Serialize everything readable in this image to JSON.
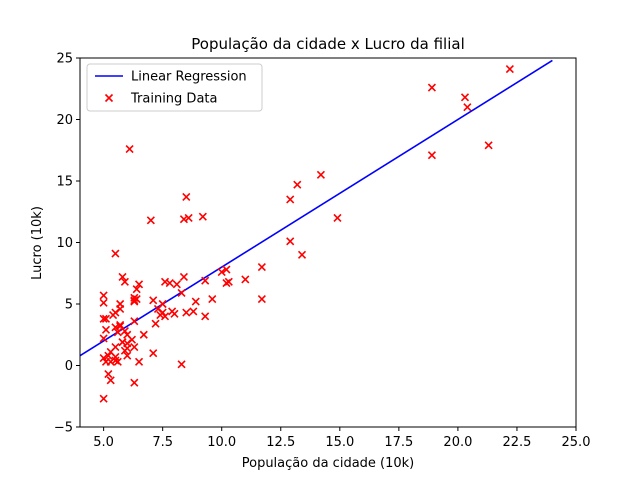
{
  "chart_data": {
    "type": "scatter",
    "title": "População da cidade x Lucro da filial",
    "xlabel": "População da cidade (10k)",
    "ylabel": "Lucro (10k)",
    "xlim": [
      4.0,
      25.0
    ],
    "ylim": [
      -5,
      25
    ],
    "xticks": [
      "5.0",
      "7.5",
      "10.0",
      "12.5",
      "15.0",
      "17.5",
      "20.0",
      "22.5",
      "25.0"
    ],
    "yticks": [
      "−5",
      "0",
      "5",
      "10",
      "15",
      "20",
      "25"
    ],
    "xtick_values": [
      5.0,
      7.5,
      10.0,
      12.5,
      15.0,
      17.5,
      20.0,
      22.5,
      25.0
    ],
    "ytick_values": [
      -5,
      0,
      5,
      10,
      15,
      20,
      25
    ],
    "grid": false,
    "legend_position": "top-left",
    "series": [
      {
        "name": "Linear Regression",
        "kind": "line",
        "color": "#0000ff",
        "x": [
          4.0,
          24.0
        ],
        "y": [
          0.8,
          24.8
        ]
      },
      {
        "name": "Training Data",
        "kind": "scatter",
        "marker": "x",
        "color": "#ff0000",
        "points": [
          [
            6.1,
            17.6
          ],
          [
            5.5,
            9.1
          ],
          [
            8.5,
            13.7
          ],
          [
            7.0,
            11.8
          ],
          [
            5.9,
            6.8
          ],
          [
            8.4,
            11.9
          ],
          [
            7.5,
            4.3
          ],
          [
            8.6,
            12.0
          ],
          [
            6.5,
            6.6
          ],
          [
            5.1,
            3.8
          ],
          [
            5.7,
            3.3
          ],
          [
            14.2,
            15.5
          ],
          [
            5.7,
            3.2
          ],
          [
            6.0,
            1.4
          ],
          [
            5.8,
            1.9
          ],
          [
            8.3,
            0.1
          ],
          [
            5.5,
            0.4
          ],
          [
            6.3,
            5.3
          ],
          [
            5.5,
            1.5
          ],
          [
            5.9,
            2.8
          ],
          [
            5.4,
            4.1
          ],
          [
            5.9,
            1.2
          ],
          [
            6.5,
            0.3
          ],
          [
            5.3,
            1.1
          ],
          [
            5.7,
            5.0
          ],
          [
            6.7,
            2.5
          ],
          [
            5.1,
            2.9
          ],
          [
            7.1,
            5.3
          ],
          [
            8.3,
            5.9
          ],
          [
            13.2,
            14.7
          ],
          [
            12.9,
            13.5
          ],
          [
            7.9,
            4.4
          ],
          [
            9.3,
            6.9
          ],
          [
            5.2,
            0.8
          ],
          [
            5.3,
            0.3
          ],
          [
            5.0,
            3.8
          ],
          [
            5.0,
            2.2
          ],
          [
            7.6,
            6.8
          ],
          [
            6.3,
            5.5
          ],
          [
            5.6,
            2.7
          ],
          [
            18.9,
            22.6
          ],
          [
            20.3,
            21.8
          ],
          [
            18.9,
            17.1
          ],
          [
            20.4,
            21.0
          ],
          [
            22.2,
            24.1
          ],
          [
            21.3,
            17.9
          ],
          [
            10.3,
            6.8
          ],
          [
            11.7,
            8.0
          ],
          [
            7.2,
            3.4
          ],
          [
            6.2,
            2.1
          ],
          [
            7.4,
            4.1
          ],
          [
            10.2,
            6.7
          ],
          [
            11.0,
            7.0
          ],
          [
            11.7,
            5.4
          ],
          [
            9.3,
            4.0
          ],
          [
            10.0,
            7.6
          ],
          [
            9.6,
            5.4
          ],
          [
            7.3,
            4.6
          ],
          [
            6.4,
            5.4
          ],
          [
            5.0,
            5.7
          ],
          [
            5.0,
            5.1
          ],
          [
            6.3,
            1.5
          ],
          [
            5.0,
            0.6
          ],
          [
            5.2,
            -0.7
          ],
          [
            5.1,
            0.3
          ],
          [
            5.3,
            -1.2
          ],
          [
            6.3,
            -1.4
          ],
          [
            5.0,
            -2.7
          ],
          [
            7.1,
            1.0
          ],
          [
            8.5,
            4.3
          ],
          [
            8.8,
            4.4
          ],
          [
            6.3,
            3.6
          ],
          [
            7.6,
            4.0
          ],
          [
            5.5,
            3.1
          ],
          [
            5.8,
            1.9
          ],
          [
            7.5,
            5.0
          ],
          [
            9.2,
            12.1
          ],
          [
            14.9,
            12.0
          ],
          [
            13.4,
            9.0
          ],
          [
            12.9,
            10.1
          ],
          [
            10.2,
            7.8
          ],
          [
            8.4,
            7.2
          ],
          [
            8.1,
            6.6
          ],
          [
            8.9,
            5.2
          ],
          [
            6.4,
            6.2
          ],
          [
            7.8,
            6.7
          ],
          [
            5.8,
            7.2
          ],
          [
            5.5,
            0.7
          ],
          [
            6.0,
            0.8
          ],
          [
            6.0,
            1.8
          ],
          [
            5.6,
            0.3
          ],
          [
            6.0,
            2.5
          ],
          [
            6.3,
            5.2
          ],
          [
            8.0,
            4.2
          ],
          [
            5.5,
            4.3
          ],
          [
            5.7,
            4.6
          ]
        ]
      }
    ],
    "legend": [
      {
        "label": "Linear Regression",
        "symbol": "line",
        "color": "#0000ff"
      },
      {
        "label": "Training Data",
        "symbol": "x",
        "color": "#ff0000"
      }
    ]
  }
}
